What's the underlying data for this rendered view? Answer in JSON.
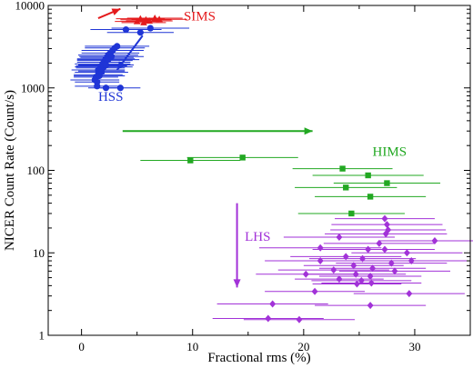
{
  "chart_data": {
    "type": "scatter",
    "title": "",
    "xlabel": "Fractional rms (%)",
    "ylabel": "NICER Count Rate (Count/s)",
    "xlim": [
      -3,
      35
    ],
    "ylim": [
      1,
      10000
    ],
    "yscale": "log",
    "x_ticks": [
      0,
      10,
      20,
      30
    ],
    "y_ticks": [
      1,
      10,
      100,
      1000,
      10000
    ],
    "grid": false,
    "series": [
      {
        "name": "HSS",
        "color": "#1f35d6",
        "marker": "circle",
        "label_pos": [
          1.5,
          700
        ],
        "points": [
          {
            "x": 1.2,
            "y": 1250,
            "xerr": 2.2
          },
          {
            "x": 1.4,
            "y": 1180,
            "xerr": 2.0
          },
          {
            "x": 1.3,
            "y": 1350,
            "xerr": 2.0
          },
          {
            "x": 1.5,
            "y": 1450,
            "xerr": 2.2
          },
          {
            "x": 1.6,
            "y": 1550,
            "xerr": 2.0
          },
          {
            "x": 1.5,
            "y": 1650,
            "xerr": 2.4
          },
          {
            "x": 1.7,
            "y": 1750,
            "xerr": 2.2
          },
          {
            "x": 1.8,
            "y": 1850,
            "xerr": 2.3
          },
          {
            "x": 1.9,
            "y": 1950,
            "xerr": 2.5
          },
          {
            "x": 2.0,
            "y": 2050,
            "xerr": 2.4
          },
          {
            "x": 2.1,
            "y": 2150,
            "xerr": 2.5
          },
          {
            "x": 2.2,
            "y": 2250,
            "xerr": 2.6
          },
          {
            "x": 2.3,
            "y": 2350,
            "xerr": 2.4
          },
          {
            "x": 2.4,
            "y": 2500,
            "xerr": 2.7
          },
          {
            "x": 2.6,
            "y": 2650,
            "xerr": 2.6
          },
          {
            "x": 2.8,
            "y": 2850,
            "xerr": 2.8
          },
          {
            "x": 3.0,
            "y": 3050,
            "xerr": 2.7
          },
          {
            "x": 3.2,
            "y": 3200,
            "xerr": 2.9
          },
          {
            "x": 1.6,
            "y": 1400,
            "xerr": 2.3
          },
          {
            "x": 2.0,
            "y": 1800,
            "xerr": 2.6
          },
          {
            "x": 2.4,
            "y": 2200,
            "xerr": 2.8
          },
          {
            "x": 1.8,
            "y": 1600,
            "xerr": 2.1
          },
          {
            "x": 2.2,
            "y": 1900,
            "xerr": 2.5
          },
          {
            "x": 2.7,
            "y": 2400,
            "xerr": 2.9
          },
          {
            "x": 1.4,
            "y": 1050,
            "xerr": 2.0
          },
          {
            "x": 2.2,
            "y": 1000,
            "xerr": 1.6
          },
          {
            "x": 3.5,
            "y": 1000,
            "xerr": 1.8
          },
          {
            "x": 1.8,
            "y": 1550,
            "xerr": 2.4
          },
          {
            "x": 4.0,
            "y": 5100,
            "xerr": 3.2
          },
          {
            "x": 6.2,
            "y": 5300,
            "xerr": 3.5
          },
          {
            "x": 5.3,
            "y": 4700,
            "xerr": 3.0
          }
        ]
      },
      {
        "name": "SIMS",
        "color": "#e41a1c",
        "marker": "triangle",
        "label_pos": [
          9.2,
          6600
        ],
        "points": [
          {
            "x": 5.0,
            "y": 6400,
            "xerr": 2.0
          },
          {
            "x": 5.3,
            "y": 6900,
            "xerr": 2.2
          },
          {
            "x": 5.6,
            "y": 6200,
            "xerr": 2.0
          },
          {
            "x": 5.8,
            "y": 6700,
            "xerr": 2.3
          },
          {
            "x": 6.1,
            "y": 6500,
            "xerr": 2.1
          },
          {
            "x": 6.6,
            "y": 7000,
            "xerr": 2.5
          },
          {
            "x": 7.0,
            "y": 6800,
            "xerr": 2.5
          }
        ]
      },
      {
        "name": "HIMS",
        "color": "#22a822",
        "marker": "square",
        "label_pos": [
          26.2,
          150
        ],
        "points": [
          {
            "x": 9.8,
            "y": 132,
            "xerr": 4.5
          },
          {
            "x": 14.5,
            "y": 143,
            "xerr": 5.0
          },
          {
            "x": 23.5,
            "y": 105,
            "xerr": 4.5
          },
          {
            "x": 25.8,
            "y": 87,
            "xerr": 5.0
          },
          {
            "x": 27.5,
            "y": 70,
            "xerr": 4.8
          },
          {
            "x": 23.8,
            "y": 62,
            "xerr": 4.6
          },
          {
            "x": 26.0,
            "y": 48,
            "xerr": 5.0
          },
          {
            "x": 24.3,
            "y": 30,
            "xerr": 4.8
          }
        ]
      },
      {
        "name": "LHS",
        "color": "#a232d8",
        "marker": "diamond",
        "label_pos": [
          14.7,
          14
        ],
        "points": [
          {
            "x": 27.3,
            "y": 26,
            "xerr": 4.5
          },
          {
            "x": 27.5,
            "y": 22,
            "xerr": 5.0
          },
          {
            "x": 27.6,
            "y": 19,
            "xerr": 5.2
          },
          {
            "x": 27.4,
            "y": 17,
            "xerr": 5.5
          },
          {
            "x": 23.2,
            "y": 15.5,
            "xerr": 5.0
          },
          {
            "x": 31.8,
            "y": 14,
            "xerr": 5.0
          },
          {
            "x": 26.8,
            "y": 13,
            "xerr": 5.0
          },
          {
            "x": 21.5,
            "y": 11.5,
            "xerr": 5.5
          },
          {
            "x": 25.8,
            "y": 11,
            "xerr": 5.0
          },
          {
            "x": 27.3,
            "y": 11,
            "xerr": 4.5
          },
          {
            "x": 29.3,
            "y": 10,
            "xerr": 5.0
          },
          {
            "x": 23.8,
            "y": 9,
            "xerr": 5.0
          },
          {
            "x": 25.3,
            "y": 8.5,
            "xerr": 4.8
          },
          {
            "x": 29.7,
            "y": 8,
            "xerr": 5.0
          },
          {
            "x": 21.5,
            "y": 8,
            "xerr": 5.0
          },
          {
            "x": 27.9,
            "y": 7.5,
            "xerr": 5.0
          },
          {
            "x": 24.5,
            "y": 7,
            "xerr": 4.5
          },
          {
            "x": 26.2,
            "y": 6.5,
            "xerr": 4.8
          },
          {
            "x": 22.7,
            "y": 6.2,
            "xerr": 5.0
          },
          {
            "x": 28.2,
            "y": 6,
            "xerr": 5.0
          },
          {
            "x": 20.2,
            "y": 5.5,
            "xerr": 4.5
          },
          {
            "x": 24.7,
            "y": 5.5,
            "xerr": 4.5
          },
          {
            "x": 26.0,
            "y": 5.2,
            "xerr": 4.6
          },
          {
            "x": 23.2,
            "y": 4.8,
            "xerr": 4.0
          },
          {
            "x": 25.2,
            "y": 4.6,
            "xerr": 4.5
          },
          {
            "x": 24.8,
            "y": 4.2,
            "xerr": 4.0
          },
          {
            "x": 26.1,
            "y": 4.3,
            "xerr": 4.5
          },
          {
            "x": 21.0,
            "y": 3.4,
            "xerr": 4.5
          },
          {
            "x": 29.5,
            "y": 3.2,
            "xerr": 5.0
          },
          {
            "x": 17.2,
            "y": 2.4,
            "xerr": 5.0
          },
          {
            "x": 26.0,
            "y": 2.3,
            "xerr": 5.0
          },
          {
            "x": 16.8,
            "y": 1.6,
            "xerr": 5.0
          },
          {
            "x": 19.6,
            "y": 1.55,
            "xerr": 5.0
          }
        ]
      }
    ],
    "arrows": [
      {
        "color": "#e41a1c",
        "from": [
          1.5,
          7000
        ],
        "to": [
          3.5,
          9100
        ]
      },
      {
        "color": "#1f35d6",
        "from": [
          5.5,
          4300
        ],
        "to": [
          3.2,
          1650
        ]
      },
      {
        "color": "#22a822",
        "from": [
          3.7,
          300
        ],
        "to": [
          20.8,
          300
        ]
      },
      {
        "color": "#a232d8",
        "from": [
          14.0,
          40
        ],
        "to": [
          14.0,
          3.8
        ]
      }
    ]
  }
}
